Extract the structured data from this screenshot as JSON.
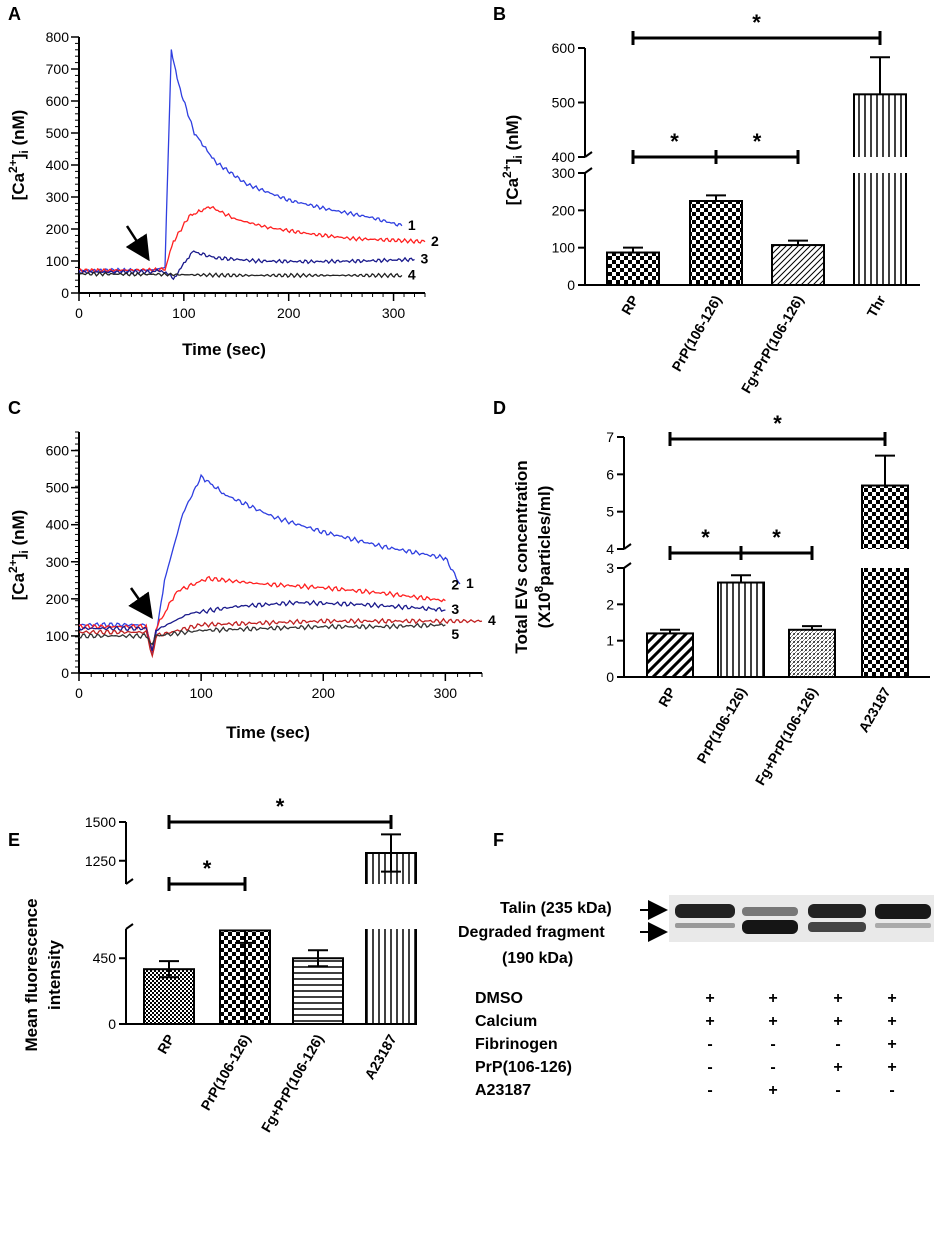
{
  "panels": [
    {
      "id": "A",
      "label": "A",
      "ylabel_parts": [
        "[Ca",
        "2+",
        "]",
        "i",
        " (nM)"
      ],
      "xlabel": "Time (sec)"
    },
    {
      "id": "B",
      "label": "B",
      "ylabel_parts": [
        "[Ca",
        "2+",
        "]",
        "i",
        " (nM)"
      ]
    },
    {
      "id": "C",
      "label": "C",
      "ylabel_parts": [
        "[Ca",
        "2+",
        "]",
        "i",
        " (nM)"
      ],
      "xlabel": "Time (sec)"
    },
    {
      "id": "D",
      "label": "D",
      "ylabel_line1": "Total EVs concentration",
      "ylabel_parts": [
        "(X10",
        "8",
        "particles/ml)"
      ]
    },
    {
      "id": "E",
      "label": "E",
      "ylabel_line1": "Mean fluorescence",
      "ylabel_line2": "intensity"
    },
    {
      "id": "F",
      "label": "F"
    }
  ],
  "chart_data": [
    {
      "panel": "A",
      "type": "line",
      "title": "",
      "xlabel": "Time (sec)",
      "ylabel": "[Ca2+]i (nM)",
      "xlim": [
        0,
        330
      ],
      "ylim": [
        0,
        800
      ],
      "xticks": [
        0,
        100,
        200,
        300
      ],
      "yticks": [
        0,
        100,
        200,
        300,
        400,
        500,
        600,
        700,
        800
      ],
      "series": [
        {
          "name": "1",
          "color": "#2f3fe0",
          "x": [
            0,
            70,
            82,
            88,
            95,
            110,
            130,
            160,
            200,
            240,
            280,
            308
          ],
          "y": [
            70,
            72,
            80,
            760,
            650,
            500,
            410,
            340,
            290,
            260,
            235,
            210
          ]
        },
        {
          "name": "2",
          "color": "#ff2020",
          "x": [
            0,
            70,
            82,
            90,
            105,
            125,
            150,
            180,
            220,
            260,
            300,
            330
          ],
          "y": [
            70,
            72,
            75,
            160,
            240,
            270,
            230,
            205,
            185,
            170,
            165,
            160
          ]
        },
        {
          "name": "3",
          "color": "#1a1a8c",
          "x": [
            0,
            70,
            80,
            90,
            100,
            108,
            130,
            170,
            220,
            270,
            320
          ],
          "y": [
            65,
            66,
            70,
            45,
            90,
            130,
            110,
            100,
            98,
            100,
            105
          ]
        },
        {
          "name": "4",
          "color": "#222222",
          "x": [
            0,
            80,
            150,
            220,
            308
          ],
          "y": [
            60,
            58,
            55,
            55,
            55
          ]
        }
      ],
      "annotations": [
        "arrow at stimulus addition"
      ]
    },
    {
      "panel": "B",
      "type": "bar",
      "ylabel": "[Ca2+]i (nM)",
      "categories": [
        "RP",
        "PrP(106-126)",
        "Fg+PrP(106-126)",
        "Thr"
      ],
      "values": [
        87,
        225,
        107,
        515
      ],
      "errors": [
        13,
        15,
        12,
        68
      ],
      "yticks": [
        0,
        100,
        200,
        300,
        400,
        500,
        600
      ],
      "broken_axis": true,
      "significance": [
        {
          "from": 0,
          "to": 3,
          "label": "*"
        },
        {
          "from": 0,
          "to": 1,
          "label": "*"
        },
        {
          "from": 1,
          "to": 2,
          "label": "*"
        }
      ]
    },
    {
      "panel": "C",
      "type": "line",
      "xlabel": "Time (sec)",
      "ylabel": "[Ca2+]i (nM)",
      "xlim": [
        0,
        330
      ],
      "ylim": [
        0,
        650
      ],
      "xticks": [
        0,
        100,
        200,
        300
      ],
      "yticks": [
        0,
        100,
        200,
        300,
        400,
        500,
        600
      ],
      "series": [
        {
          "name": "1",
          "color": "#2f3fe0",
          "x": [
            0,
            55,
            60,
            63,
            70,
            85,
            100,
            120,
            160,
            200,
            250,
            300,
            312
          ],
          "y": [
            130,
            130,
            60,
            100,
            250,
            430,
            530,
            480,
            420,
            380,
            340,
            310,
            240
          ]
        },
        {
          "name": "2",
          "color": "#ff2020",
          "x": [
            0,
            55,
            60,
            63,
            80,
            105,
            150,
            200,
            250,
            300
          ],
          "y": [
            125,
            125,
            55,
            120,
            220,
            255,
            240,
            230,
            215,
            195
          ]
        },
        {
          "name": "3",
          "color": "#1a1a8c",
          "x": [
            0,
            55,
            60,
            63,
            90,
            130,
            180,
            230,
            280,
            300
          ],
          "y": [
            120,
            120,
            60,
            115,
            160,
            180,
            190,
            185,
            175,
            170
          ]
        },
        {
          "name": "4",
          "color": "#c02020",
          "x": [
            0,
            55,
            60,
            63,
            100,
            150,
            200,
            250,
            300,
            330
          ],
          "y": [
            110,
            110,
            40,
            100,
            130,
            135,
            140,
            140,
            140,
            140
          ]
        },
        {
          "name": "5",
          "color": "#333333",
          "x": [
            0,
            55,
            60,
            63,
            100,
            150,
            200,
            250,
            300
          ],
          "y": [
            100,
            100,
            80,
            100,
            115,
            120,
            125,
            125,
            130
          ]
        }
      ],
      "annotations": [
        "arrow at stimulus addition"
      ]
    },
    {
      "panel": "D",
      "type": "bar",
      "ylabel": "Total EVs concentration (X10^8 particles/ml)",
      "categories": [
        "RP",
        "PrP(106-126)",
        "Fg+PrP(106-126)",
        "A23187"
      ],
      "values": [
        1.2,
        2.6,
        1.3,
        5.7
      ],
      "errors": [
        0.1,
        0.2,
        0.1,
        0.8
      ],
      "yticks": [
        0,
        1,
        2,
        3,
        4,
        5,
        6,
        7
      ],
      "broken_axis": true,
      "significance": [
        {
          "from": 0,
          "to": 3,
          "label": "*"
        },
        {
          "from": 0,
          "to": 1,
          "label": "*"
        },
        {
          "from": 1,
          "to": 2,
          "label": "*"
        }
      ]
    },
    {
      "panel": "E",
      "type": "bar",
      "ylabel": "Mean fluorescence intensity",
      "categories": [
        "RP",
        "PrP(106-126)",
        "Fg+PrP(106-126)",
        "A23187"
      ],
      "values": [
        375,
        640,
        450,
        1300
      ],
      "errors": [
        55,
        85,
        55,
        120
      ],
      "yticks": [
        0,
        450,
        1250,
        1500
      ],
      "broken_axis": true,
      "significance": [
        {
          "from": 0,
          "to": 3,
          "label": "*"
        },
        {
          "from": 0,
          "to": 1,
          "label": "*"
        }
      ]
    }
  ],
  "western_blot": {
    "band_labels": [
      "Talin (235 kDa)",
      "Degraded fragment",
      "(190 kDa)"
    ],
    "rows": [
      {
        "label": "DMSO",
        "marks": [
          "+",
          "+",
          "+",
          "+"
        ]
      },
      {
        "label": "Calcium",
        "marks": [
          "+",
          "+",
          "+",
          "+"
        ]
      },
      {
        "label": "Fibrinogen",
        "marks": [
          "-",
          "-",
          "-",
          "+"
        ]
      },
      {
        "label": "PrP(106-126)",
        "marks": [
          "-",
          "-",
          "+",
          "+"
        ]
      },
      {
        "label": "A23187",
        "marks": [
          "-",
          "+",
          "-",
          "-"
        ]
      }
    ]
  },
  "colors": {
    "blue": "#2f3fe0",
    "red": "#ff2020",
    "navy": "#1a1a8c",
    "black": "#222222"
  }
}
